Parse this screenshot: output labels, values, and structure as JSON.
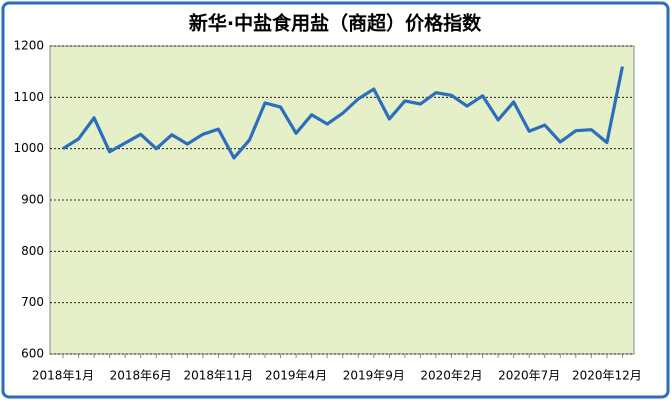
{
  "chart_data": {
    "type": "line",
    "title": "新华·中盐食用盐（商超）价格指数",
    "categories": [
      "2018年1月",
      null,
      null,
      null,
      null,
      "2018年6月",
      null,
      null,
      null,
      null,
      "2018年11月",
      null,
      null,
      null,
      null,
      "2019年4月",
      null,
      null,
      null,
      null,
      "2019年9月",
      null,
      null,
      null,
      null,
      "2020年2月",
      null,
      null,
      null,
      null,
      "2020年7月",
      null,
      null,
      null,
      null,
      "2020年12月",
      null
    ],
    "series": [
      {
        "color": "#2a6ebd",
        "values": [
          1000,
          1019,
          1060,
          994,
          1011,
          1028,
          1000,
          1027,
          1009,
          1028,
          1038,
          982,
          1017,
          1089,
          1081,
          1030,
          1066,
          1048,
          1069,
          1097,
          1116,
          1058,
          1093,
          1087,
          1109,
          1104,
          1083,
          1103,
          1056,
          1091,
          1034,
          1046,
          1013,
          1035,
          1037,
          1012,
          1160
        ]
      }
    ],
    "ylim": [
      600,
      1200
    ],
    "yticks": [
      600,
      700,
      800,
      900,
      1000,
      1100,
      1200
    ],
    "grid": true
  }
}
